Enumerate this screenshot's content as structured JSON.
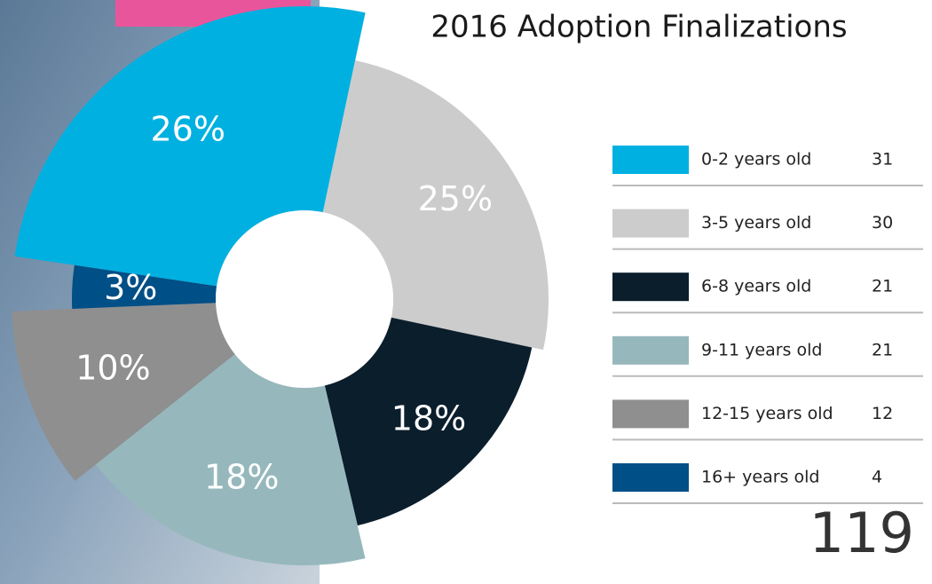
{
  "chart_data": {
    "type": "pie",
    "title": "2016 Adoption Finalizations",
    "categories": [
      "0-2 years old",
      "3-5 years old",
      "6-8 years old",
      "9-11 years old",
      "12-15 years old",
      "16+ years old"
    ],
    "values": [
      31,
      30,
      21,
      21,
      12,
      4
    ],
    "percentages": [
      26,
      25,
      18,
      18,
      10,
      3
    ],
    "percentage_labels": [
      "26%",
      "25%",
      "18%",
      "18%",
      "10%",
      "3%"
    ],
    "colors": [
      "#00b0e0",
      "#cccccc",
      "#0b1e2c",
      "#96b8bc",
      "#8f8f8f",
      "#004f86"
    ],
    "total": 119
  }
}
